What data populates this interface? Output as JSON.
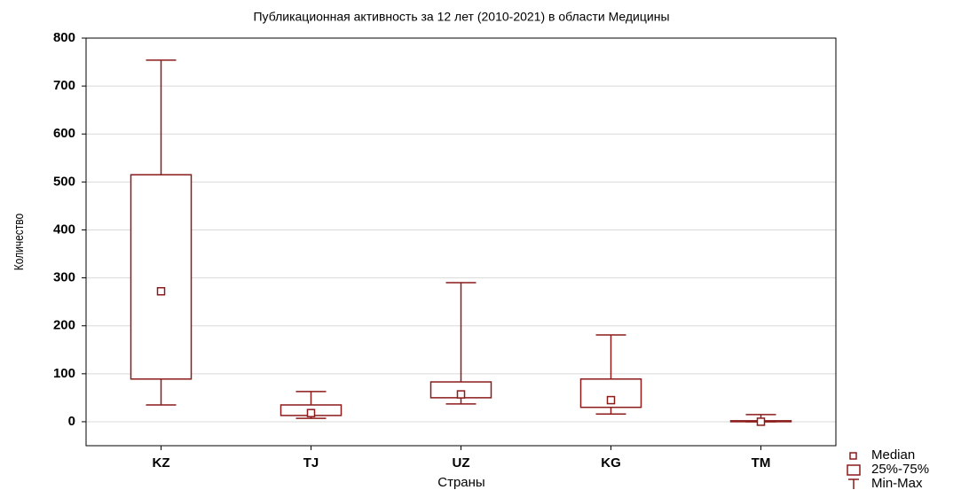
{
  "chart_data": {
    "type": "box",
    "title": "Публикационная активность за 12 лет (2010-2021) в области Медицины",
    "x_label": "Страны",
    "y_label": "Количество",
    "categories": [
      "KZ",
      "TJ",
      "UZ",
      "KG",
      "TM"
    ],
    "min": [
      35,
      7,
      37,
      16,
      0
    ],
    "q1": [
      89,
      13,
      50,
      30,
      0
    ],
    "median": [
      272,
      18,
      57,
      45,
      0
    ],
    "q3": [
      515,
      35,
      83,
      89,
      2
    ],
    "max": [
      754,
      63,
      290,
      181,
      15
    ],
    "color": "#8b1a1a",
    "ylim": [
      -50,
      800
    ],
    "yticks": [
      0,
      100,
      200,
      300,
      400,
      500,
      600,
      700,
      800
    ],
    "grid": true,
    "legend": {
      "position": "bottom-right",
      "items": [
        "Median",
        "25%-75%",
        "Min-Max"
      ]
    }
  }
}
